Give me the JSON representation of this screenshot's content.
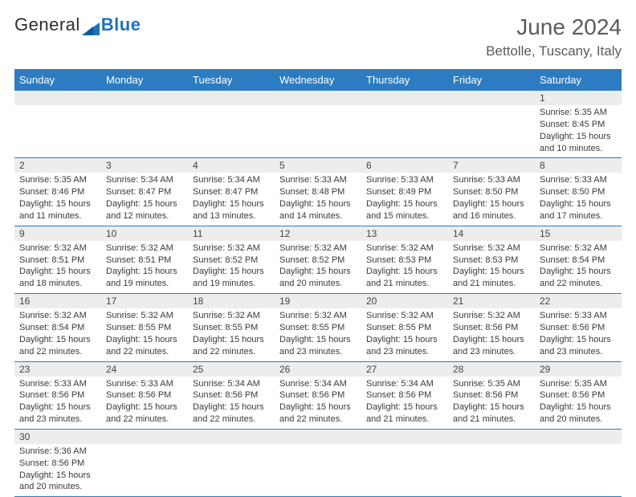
{
  "brand": {
    "word1": "General",
    "word2": "Blue"
  },
  "title": "June 2024",
  "location": "Bettolle, Tuscany, Italy",
  "colors": {
    "header_bg": "#2d7cc1",
    "header_fg": "#ffffff",
    "daynum_bg": "#ededed",
    "brand_blue": "#1d72b8"
  },
  "weekdays": [
    "Sunday",
    "Monday",
    "Tuesday",
    "Wednesday",
    "Thursday",
    "Friday",
    "Saturday"
  ],
  "first_weekday_index": 6,
  "days": [
    {
      "n": 1,
      "sr": "5:35 AM",
      "ss": "8:45 PM",
      "dl": "15 hours and 10 minutes."
    },
    {
      "n": 2,
      "sr": "5:35 AM",
      "ss": "8:46 PM",
      "dl": "15 hours and 11 minutes."
    },
    {
      "n": 3,
      "sr": "5:34 AM",
      "ss": "8:47 PM",
      "dl": "15 hours and 12 minutes."
    },
    {
      "n": 4,
      "sr": "5:34 AM",
      "ss": "8:47 PM",
      "dl": "15 hours and 13 minutes."
    },
    {
      "n": 5,
      "sr": "5:33 AM",
      "ss": "8:48 PM",
      "dl": "15 hours and 14 minutes."
    },
    {
      "n": 6,
      "sr": "5:33 AM",
      "ss": "8:49 PM",
      "dl": "15 hours and 15 minutes."
    },
    {
      "n": 7,
      "sr": "5:33 AM",
      "ss": "8:50 PM",
      "dl": "15 hours and 16 minutes."
    },
    {
      "n": 8,
      "sr": "5:33 AM",
      "ss": "8:50 PM",
      "dl": "15 hours and 17 minutes."
    },
    {
      "n": 9,
      "sr": "5:32 AM",
      "ss": "8:51 PM",
      "dl": "15 hours and 18 minutes."
    },
    {
      "n": 10,
      "sr": "5:32 AM",
      "ss": "8:51 PM",
      "dl": "15 hours and 19 minutes."
    },
    {
      "n": 11,
      "sr": "5:32 AM",
      "ss": "8:52 PM",
      "dl": "15 hours and 19 minutes."
    },
    {
      "n": 12,
      "sr": "5:32 AM",
      "ss": "8:52 PM",
      "dl": "15 hours and 20 minutes."
    },
    {
      "n": 13,
      "sr": "5:32 AM",
      "ss": "8:53 PM",
      "dl": "15 hours and 21 minutes."
    },
    {
      "n": 14,
      "sr": "5:32 AM",
      "ss": "8:53 PM",
      "dl": "15 hours and 21 minutes."
    },
    {
      "n": 15,
      "sr": "5:32 AM",
      "ss": "8:54 PM",
      "dl": "15 hours and 22 minutes."
    },
    {
      "n": 16,
      "sr": "5:32 AM",
      "ss": "8:54 PM",
      "dl": "15 hours and 22 minutes."
    },
    {
      "n": 17,
      "sr": "5:32 AM",
      "ss": "8:55 PM",
      "dl": "15 hours and 22 minutes."
    },
    {
      "n": 18,
      "sr": "5:32 AM",
      "ss": "8:55 PM",
      "dl": "15 hours and 22 minutes."
    },
    {
      "n": 19,
      "sr": "5:32 AM",
      "ss": "8:55 PM",
      "dl": "15 hours and 23 minutes."
    },
    {
      "n": 20,
      "sr": "5:32 AM",
      "ss": "8:55 PM",
      "dl": "15 hours and 23 minutes."
    },
    {
      "n": 21,
      "sr": "5:32 AM",
      "ss": "8:56 PM",
      "dl": "15 hours and 23 minutes."
    },
    {
      "n": 22,
      "sr": "5:33 AM",
      "ss": "8:56 PM",
      "dl": "15 hours and 23 minutes."
    },
    {
      "n": 23,
      "sr": "5:33 AM",
      "ss": "8:56 PM",
      "dl": "15 hours and 23 minutes."
    },
    {
      "n": 24,
      "sr": "5:33 AM",
      "ss": "8:56 PM",
      "dl": "15 hours and 22 minutes."
    },
    {
      "n": 25,
      "sr": "5:34 AM",
      "ss": "8:56 PM",
      "dl": "15 hours and 22 minutes."
    },
    {
      "n": 26,
      "sr": "5:34 AM",
      "ss": "8:56 PM",
      "dl": "15 hours and 22 minutes."
    },
    {
      "n": 27,
      "sr": "5:34 AM",
      "ss": "8:56 PM",
      "dl": "15 hours and 21 minutes."
    },
    {
      "n": 28,
      "sr": "5:35 AM",
      "ss": "8:56 PM",
      "dl": "15 hours and 21 minutes."
    },
    {
      "n": 29,
      "sr": "5:35 AM",
      "ss": "8:56 PM",
      "dl": "15 hours and 20 minutes."
    },
    {
      "n": 30,
      "sr": "5:36 AM",
      "ss": "8:56 PM",
      "dl": "15 hours and 20 minutes."
    }
  ],
  "labels": {
    "sunrise": "Sunrise:",
    "sunset": "Sunset:",
    "daylight": "Daylight:"
  }
}
